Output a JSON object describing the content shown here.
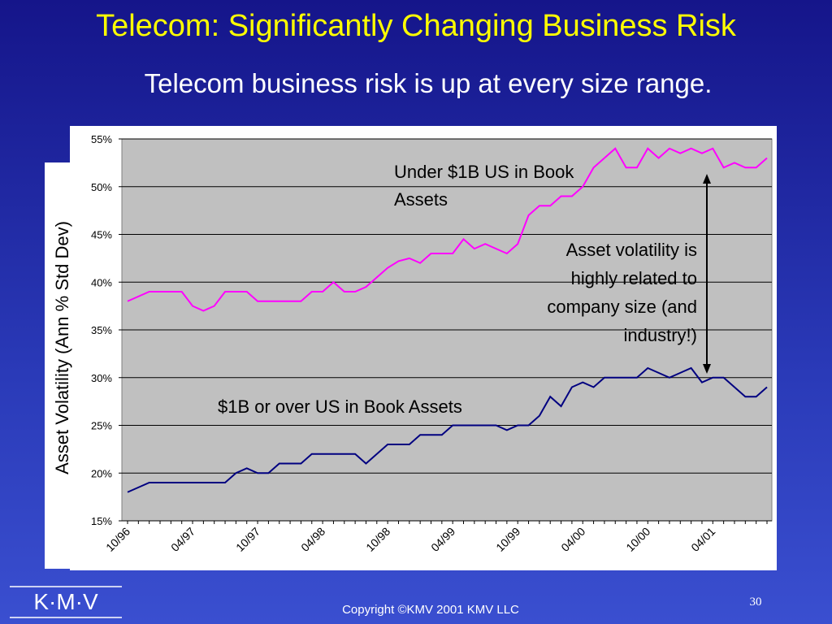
{
  "chart_data": {
    "type": "line",
    "title": "Telecom: Significantly Changing Business Risk",
    "subtitle": "Telecom business risk is up at every size range.",
    "y_label": "Asset Volatility (Ann % Std Dev)",
    "annotation": "Asset volatility is highly related to company size (and industry!)",
    "categories": [
      "10/96",
      null,
      null,
      null,
      null,
      null,
      "04/97",
      null,
      null,
      null,
      null,
      null,
      "10/97",
      null,
      null,
      null,
      null,
      null,
      "04/98",
      null,
      null,
      null,
      null,
      null,
      "10/98",
      null,
      null,
      null,
      null,
      null,
      "04/99",
      null,
      null,
      null,
      null,
      null,
      "10/99",
      null,
      null,
      null,
      null,
      null,
      "04/00",
      null,
      null,
      null,
      null,
      null,
      "10/00",
      null,
      null,
      null,
      null,
      null,
      "04/01",
      null,
      null,
      null,
      null,
      null
    ],
    "series": [
      {
        "name": "Under $1B US in Book Assets",
        "color": "#ff00ff",
        "values": [
          38,
          38.5,
          39,
          39,
          39,
          39,
          37.5,
          37,
          37.5,
          39,
          39,
          39,
          38,
          38,
          38,
          38,
          38,
          39,
          39,
          40,
          39,
          39,
          39.5,
          40.5,
          41.5,
          42.2,
          42.5,
          42,
          43,
          43,
          43,
          44.5,
          43.5,
          44,
          43.5,
          43,
          44,
          47,
          48,
          48,
          49,
          49,
          50,
          52,
          53,
          54,
          52,
          52,
          54,
          53,
          54,
          53.5,
          54,
          53.5,
          54,
          52,
          52.5,
          52,
          52,
          53
        ]
      },
      {
        "name": "$1B or over US in Book Assets",
        "color": "#000080",
        "values": [
          18,
          18.5,
          19,
          19,
          19,
          19,
          19,
          19,
          19,
          19,
          20,
          20.5,
          20,
          20,
          21,
          21,
          21,
          22,
          22,
          22,
          22,
          22,
          21,
          22,
          23,
          23,
          23,
          24,
          24,
          24,
          25,
          25,
          25,
          25,
          25,
          24.5,
          25,
          25,
          26,
          28,
          27,
          29,
          29.5,
          29,
          30,
          30,
          30,
          30,
          31,
          30.5,
          30,
          30.5,
          31,
          29.5,
          30,
          30,
          29,
          28,
          28,
          29
        ]
      }
    ],
    "ylim": [
      15,
      55
    ],
    "yticks": [
      {
        "value": 15,
        "label": "15%"
      },
      {
        "value": 20,
        "label": "20%"
      },
      {
        "value": 25,
        "label": "25%"
      },
      {
        "value": 30,
        "label": "30%"
      },
      {
        "value": 35,
        "label": "35%"
      },
      {
        "value": 40,
        "label": "40%"
      },
      {
        "value": 45,
        "label": "45%"
      },
      {
        "value": 50,
        "label": "50%"
      },
      {
        "value": 55,
        "label": "55%"
      }
    ],
    "grid": true
  },
  "footer": {
    "logo": "K·M·V",
    "copyright": "Copyright ©KMV 2001 KMV LLC",
    "page": "30"
  }
}
